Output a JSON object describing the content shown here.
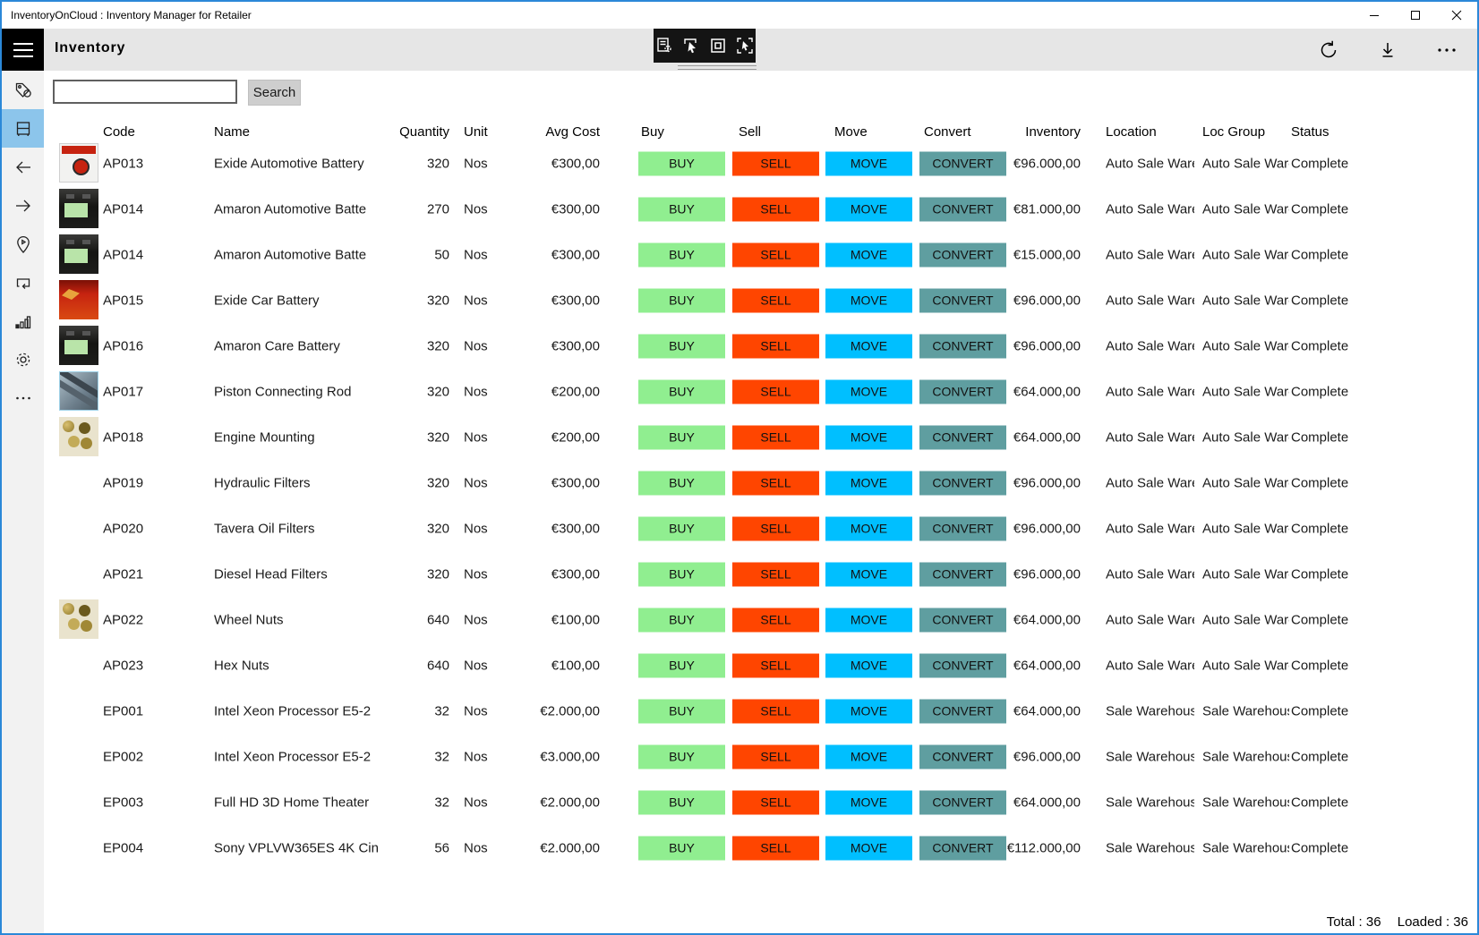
{
  "titlebar": {
    "title": "InventoryOnCloud : Inventory Manager for Retailer"
  },
  "header": {
    "page_title": "Inventory",
    "toolbar_icons": [
      "form-settings-icon",
      "select-pointer-icon",
      "multi-select-icon",
      "select-all-icon"
    ],
    "right_icons": [
      "refresh-icon",
      "download-icon",
      "more-icon"
    ]
  },
  "sidebar": {
    "items": [
      {
        "name": "tags",
        "icon": "tag-icon",
        "selected": false
      },
      {
        "name": "inventory",
        "icon": "rack-icon",
        "selected": true
      },
      {
        "name": "back",
        "icon": "arrow-left-icon",
        "selected": false
      },
      {
        "name": "forward",
        "icon": "arrow-right-icon",
        "selected": false
      },
      {
        "name": "locations",
        "icon": "location-pin-icon",
        "selected": false
      },
      {
        "name": "transfers",
        "icon": "repeat-icon",
        "selected": false
      },
      {
        "name": "reports",
        "icon": "bar-chart-icon",
        "selected": false
      },
      {
        "name": "settings",
        "icon": "gear-icon",
        "selected": false
      },
      {
        "name": "more",
        "icon": "ellipsis-icon",
        "selected": false
      }
    ]
  },
  "search": {
    "value": "",
    "placeholder": "",
    "button_label": "Search"
  },
  "table": {
    "headers": [
      "Code",
      "Name",
      "Quantity",
      "Unit",
      "Avg Cost",
      "Buy",
      "Sell",
      "Move",
      "Convert",
      "Inventory",
      "Location",
      "Loc Group",
      "Status"
    ],
    "buttons": {
      "buy": "BUY",
      "sell": "SELL",
      "move": "MOVE",
      "convert": "CONVERT"
    },
    "rows": [
      {
        "code": "AP013",
        "name": "Exide Automotive Battery",
        "quantity": "320",
        "unit": "Nos",
        "avg_cost": "€300,00",
        "inventory": "€96.000,00",
        "location": "Auto Sale Ware",
        "loc_group": "Auto Sale Ware",
        "status": "Complete",
        "image": "exide"
      },
      {
        "code": "AP014",
        "name": "Amaron Automotive Batte",
        "quantity": "270",
        "unit": "Nos",
        "avg_cost": "€300,00",
        "inventory": "€81.000,00",
        "location": "Auto Sale Ware",
        "loc_group": "Auto Sale Ware",
        "status": "Complete",
        "image": "amaron"
      },
      {
        "code": "AP014",
        "name": "Amaron Automotive Batte",
        "quantity": "50",
        "unit": "Nos",
        "avg_cost": "€300,00",
        "inventory": "€15.000,00",
        "location": "Auto Sale Ware",
        "loc_group": "Auto Sale Ware",
        "status": "Complete",
        "image": "amaron"
      },
      {
        "code": "AP015",
        "name": "Exide Car Battery",
        "quantity": "320",
        "unit": "Nos",
        "avg_cost": "€300,00",
        "inventory": "€96.000,00",
        "location": "Auto Sale Ware",
        "loc_group": "Auto Sale Ware",
        "status": "Complete",
        "image": "exide-red"
      },
      {
        "code": "AP016",
        "name": "Amaron Care Battery",
        "quantity": "320",
        "unit": "Nos",
        "avg_cost": "€300,00",
        "inventory": "€96.000,00",
        "location": "Auto Sale Ware",
        "loc_group": "Auto Sale Ware",
        "status": "Complete",
        "image": "amaron"
      },
      {
        "code": "AP017",
        "name": "Piston Connecting Rod",
        "quantity": "320",
        "unit": "Nos",
        "avg_cost": "€200,00",
        "inventory": "€64.000,00",
        "location": "Auto Sale Ware",
        "loc_group": "Auto Sale Ware",
        "status": "Complete",
        "image": "rod"
      },
      {
        "code": "AP018",
        "name": "Engine Mounting",
        "quantity": "320",
        "unit": "Nos",
        "avg_cost": "€200,00",
        "inventory": "€64.000,00",
        "location": "Auto Sale Ware",
        "loc_group": "Auto Sale Ware",
        "status": "Complete",
        "image": "nuts"
      },
      {
        "code": "AP019",
        "name": "Hydraulic Filters",
        "quantity": "320",
        "unit": "Nos",
        "avg_cost": "€300,00",
        "inventory": "€96.000,00",
        "location": "Auto Sale Ware",
        "loc_group": "Auto Sale Ware",
        "status": "Complete",
        "image": "none"
      },
      {
        "code": "AP020",
        "name": "Tavera Oil Filters",
        "quantity": "320",
        "unit": "Nos",
        "avg_cost": "€300,00",
        "inventory": "€96.000,00",
        "location": "Auto Sale Ware",
        "loc_group": "Auto Sale Ware",
        "status": "Complete",
        "image": "none"
      },
      {
        "code": "AP021",
        "name": "Diesel Head Filters",
        "quantity": "320",
        "unit": "Nos",
        "avg_cost": "€300,00",
        "inventory": "€96.000,00",
        "location": "Auto Sale Ware",
        "loc_group": "Auto Sale Ware",
        "status": "Complete",
        "image": "none"
      },
      {
        "code": "AP022",
        "name": "Wheel Nuts",
        "quantity": "640",
        "unit": "Nos",
        "avg_cost": "€100,00",
        "inventory": "€64.000,00",
        "location": "Auto Sale Ware",
        "loc_group": "Auto Sale Ware",
        "status": "Complete",
        "image": "nuts"
      },
      {
        "code": "AP023",
        "name": "Hex Nuts",
        "quantity": "640",
        "unit": "Nos",
        "avg_cost": "€100,00",
        "inventory": "€64.000,00",
        "location": "Auto Sale Ware",
        "loc_group": "Auto Sale Ware",
        "status": "Complete",
        "image": "none"
      },
      {
        "code": "EP001",
        "name": "Intel Xeon Processor E5-2",
        "quantity": "32",
        "unit": "Nos",
        "avg_cost": "€2.000,00",
        "inventory": "€64.000,00",
        "location": "Sale Warehouse",
        "loc_group": "Sale Warehouse",
        "status": "Complete",
        "image": "none"
      },
      {
        "code": "EP002",
        "name": "Intel Xeon Processor E5-2",
        "quantity": "32",
        "unit": "Nos",
        "avg_cost": "€3.000,00",
        "inventory": "€96.000,00",
        "location": "Sale Warehouse",
        "loc_group": "Sale Warehouse",
        "status": "Complete",
        "image": "none"
      },
      {
        "code": "EP003",
        "name": "Full HD 3D Home Theater",
        "quantity": "32",
        "unit": "Nos",
        "avg_cost": "€2.000,00",
        "inventory": "€64.000,00",
        "location": "Sale Warehouse",
        "loc_group": "Sale Warehouse",
        "status": "Complete",
        "image": "none"
      },
      {
        "code": "EP004",
        "name": "Sony VPLVW365ES 4K Cin",
        "quantity": "56",
        "unit": "Nos",
        "avg_cost": "€2.000,00",
        "inventory": "€112.000,00",
        "location": "Sale Warehouse",
        "loc_group": "Sale Warehouse",
        "status": "Complete",
        "image": "none"
      }
    ]
  },
  "footer": {
    "total": "Total : 36",
    "loaded": "Loaded : 36"
  },
  "colors": {
    "accent_border": "#2b88d8",
    "nav_selected": "#8cc5eb",
    "buy": "#90ee90",
    "sell": "#ff4500",
    "move": "#00bfff",
    "convert": "#5f9ea0",
    "appbar": "#e6e6e6",
    "sidebar": "#f2f2f2",
    "toolbar_bg": "#141414"
  }
}
